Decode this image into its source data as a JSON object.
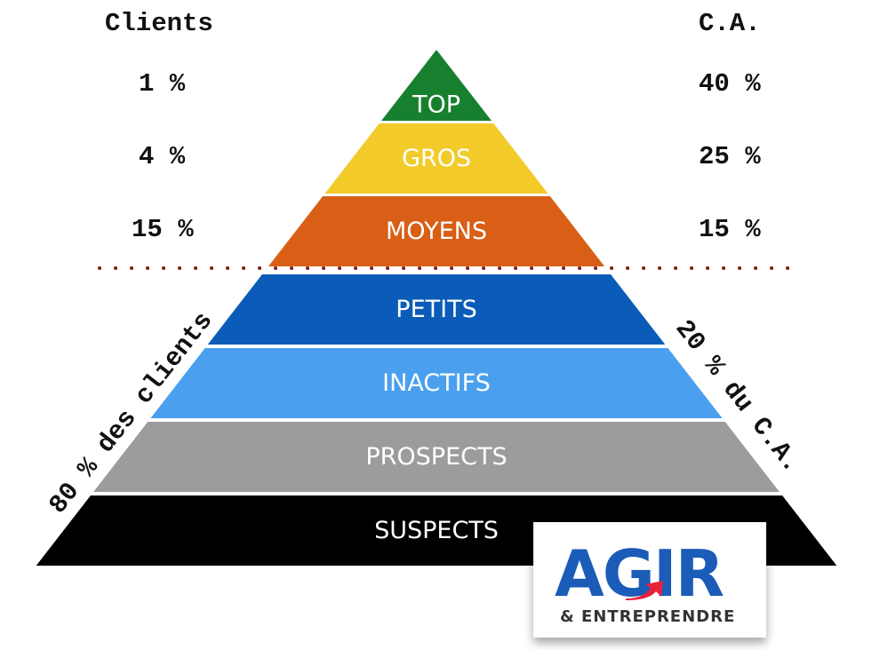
{
  "headers": {
    "left": "Clients",
    "right": "C.A."
  },
  "rows": [
    {
      "clients": "1 %",
      "ca": "40 %"
    },
    {
      "clients": "4 %",
      "ca": "25 %"
    },
    {
      "clients": "15 %",
      "ca": "15 %"
    }
  ],
  "levels": [
    {
      "label": "TOP",
      "color": "#17802e"
    },
    {
      "label": "GROS",
      "color": "#f2cb2a"
    },
    {
      "label": "MOYENS",
      "color": "#d85f15"
    },
    {
      "label": "PETITS",
      "color": "#0b5cb8"
    },
    {
      "label": "INACTIFS",
      "color": "#4aa0ef"
    },
    {
      "label": "PROSPECTS",
      "color": "#9a9d9b"
    },
    {
      "label": "SUSPECTS",
      "color": "#000000"
    }
  ],
  "divider_color": "#7a1c14",
  "side_left": "80 % des clients",
  "side_right": "20 % du C.A.",
  "logo": {
    "main": "AGIR",
    "sub": "& ENTREPRENDRE"
  }
}
